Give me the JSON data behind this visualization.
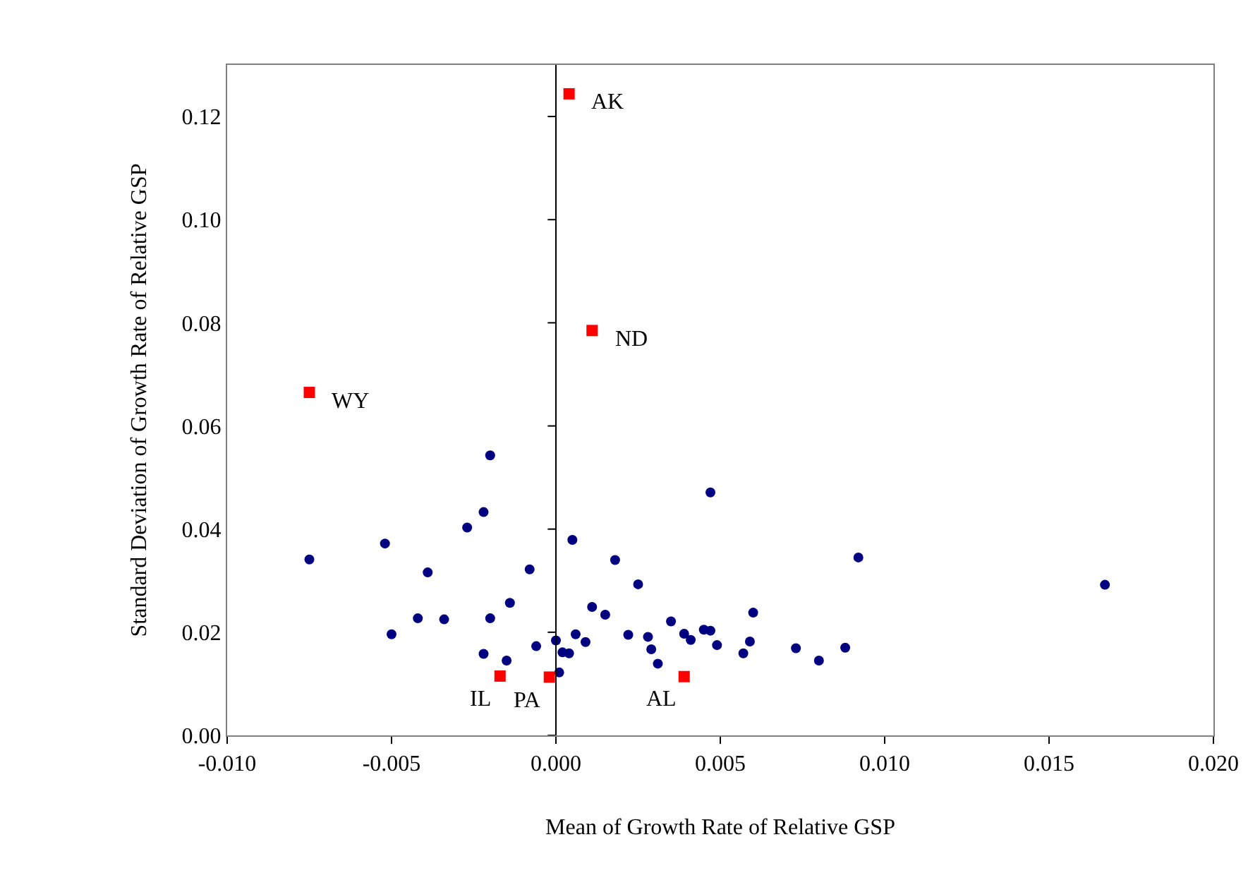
{
  "chart_data": {
    "type": "scatter",
    "xlabel": "Mean of Growth Rate of Relative GSP",
    "ylabel": "Standard Deviation of Growth Rate of Relative GSP",
    "xlim": [
      -0.01,
      0.02
    ],
    "xticks": [
      {
        "value": -0.01,
        "label": "-0.010"
      },
      {
        "value": -0.005,
        "label": "-0.005"
      },
      {
        "value": 0,
        "label": "0.000"
      },
      {
        "value": 0.005,
        "label": "0.005"
      },
      {
        "value": 0.01,
        "label": "0.010"
      },
      {
        "value": 0.015,
        "label": "0.015"
      },
      {
        "value": 0.02,
        "label": "0.020"
      }
    ],
    "ylim": [
      0,
      0.13
    ],
    "yticks": [
      {
        "value": 0,
        "label": "0.00"
      },
      {
        "value": 0.02,
        "label": "0.02"
      },
      {
        "value": 0.04,
        "label": "0.04"
      },
      {
        "value": 0.06,
        "label": "0.06"
      },
      {
        "value": 0.08,
        "label": "0.08"
      },
      {
        "value": 0.1,
        "label": "0.10"
      },
      {
        "value": 0.12,
        "label": "0.12"
      }
    ],
    "ref_lines": [
      {
        "axis": "x",
        "value": 0,
        "color": "#000000",
        "line_style": "solid"
      }
    ],
    "series": [
      {
        "color": "#000080",
        "marker": "circle",
        "x": [
          -0.0075,
          -0.0052,
          -0.005,
          -0.0039,
          -0.0042,
          -0.0034,
          -0.0027,
          -0.0022,
          -0.002,
          -0.002,
          -0.0022,
          -0.0014,
          -0.0015,
          -0.0008,
          -0.0006,
          0.0005,
          0.0,
          0.0002,
          0.0004,
          0.0001,
          0.0006,
          0.0047,
          0.0092,
          0.0018,
          0.0025,
          0.0011,
          0.0015,
          0.0009,
          0.0022,
          0.0028,
          0.0029,
          0.0031,
          0.0035,
          0.0039,
          0.0041,
          0.0045,
          0.0047,
          0.0049,
          0.006,
          0.0059,
          0.0057,
          0.0073,
          0.008,
          0.0088,
          0.0167
        ],
        "values": [
          0.0341,
          0.0372,
          0.0196,
          0.0316,
          0.0227,
          0.0225,
          0.0403,
          0.0433,
          0.0543,
          0.0227,
          0.0158,
          0.0257,
          0.0145,
          0.0322,
          0.0173,
          0.0379,
          0.0184,
          0.0161,
          0.0159,
          0.0122,
          0.0196,
          0.0471,
          0.0345,
          0.034,
          0.0293,
          0.0249,
          0.0234,
          0.0181,
          0.0195,
          0.0191,
          0.0167,
          0.0139,
          0.0221,
          0.0197,
          0.0185,
          0.0205,
          0.0203,
          0.0175,
          0.0238,
          0.0182,
          0.0159,
          0.0169,
          0.0145,
          0.017,
          0.0292
        ]
      },
      {
        "color": "#ff0000",
        "marker": "square",
        "x": [
          0.0004,
          0.0011,
          -0.0075,
          -0.0017,
          -0.0002,
          0.0039
        ],
        "values": [
          0.1244,
          0.0785,
          0.0665,
          0.0115,
          0.0113,
          0.0114
        ]
      }
    ],
    "annotations": [
      {
        "text": "AK",
        "x": 0.0004,
        "y": 0.1244
      },
      {
        "text": "ND",
        "x": 0.0011,
        "y": 0.0785
      },
      {
        "text": "WY",
        "x": -0.0075,
        "y": 0.0665
      },
      {
        "text": "IL",
        "x": -0.0017,
        "y": 0.0115
      },
      {
        "text": "PA",
        "x": -0.0002,
        "y": 0.0113
      },
      {
        "text": "AL",
        "x": 0.0039,
        "y": 0.0114
      }
    ]
  }
}
